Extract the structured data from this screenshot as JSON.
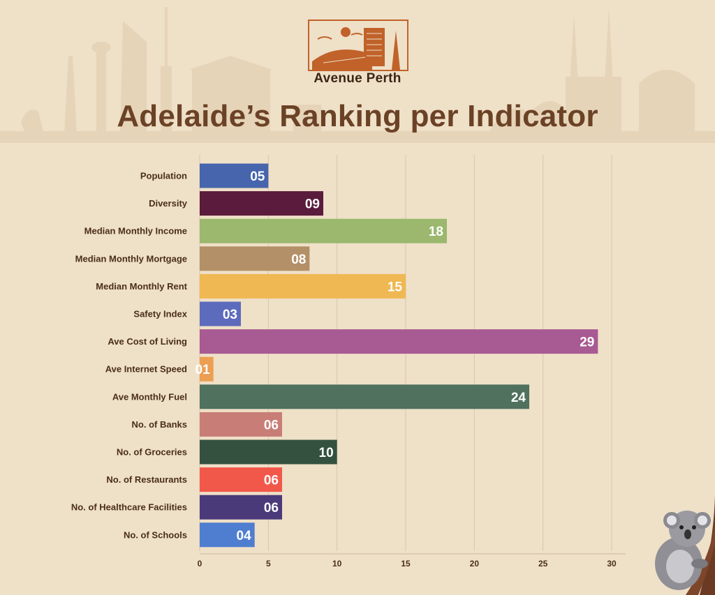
{
  "header": {
    "brand": "Avenue Perth",
    "title": "Adelaide’s Ranking per Indicator"
  },
  "colors": {
    "background": "#efe0c8",
    "title": "#6b4226",
    "label": "#4a2e1a",
    "grid": "#d9c6ab",
    "brand_accent": "#c0622a"
  },
  "chart_data": {
    "type": "bar",
    "orientation": "horizontal",
    "title": "Adelaide’s Ranking per Indicator",
    "xlabel": "",
    "ylabel": "",
    "xlim": [
      0,
      30
    ],
    "xticks": [
      0,
      5,
      10,
      15,
      20,
      25,
      30
    ],
    "grid": true,
    "categories": [
      "Population",
      "Diversity",
      "Median Monthly Income",
      "Median Monthly Mortgage",
      "Median Monthly Rent",
      "Safety Index",
      "Ave Cost of Living",
      "Ave Internet Speed",
      "Ave Monthly Fuel",
      "No. of Banks",
      "No. of Groceries",
      "No. of Restaurants",
      "No. of Healthcare Facilities",
      "No. of Schools"
    ],
    "values": [
      5,
      9,
      18,
      8,
      15,
      3,
      29,
      1,
      24,
      6,
      10,
      6,
      6,
      4
    ],
    "value_labels": [
      "05",
      "09",
      "18",
      "08",
      "15",
      "03",
      "29",
      "01",
      "24",
      "06",
      "10",
      "06",
      "06",
      "04"
    ],
    "bar_colors": [
      "#4765ad",
      "#5a1b3c",
      "#9bb86e",
      "#b39068",
      "#efb852",
      "#5d6bbd",
      "#a85a92",
      "#ec9e52",
      "#4f715e",
      "#c87d76",
      "#34513f",
      "#f2584a",
      "#4a3a7a",
      "#4f7ed0"
    ]
  }
}
